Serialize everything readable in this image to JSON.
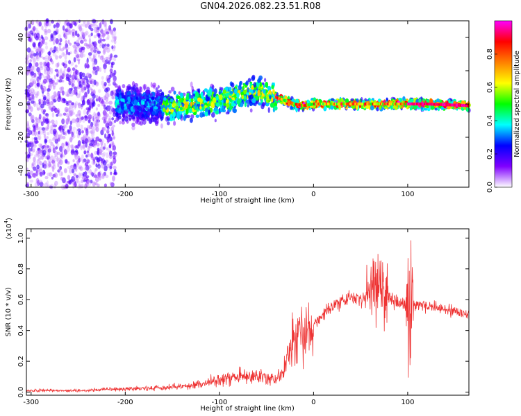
{
  "title": "GN04.2026.082.23.51.R08",
  "chart_data": [
    {
      "type": "heatmap",
      "xlabel": "Height of straight line (km)",
      "ylabel": "Frequency (Hz)",
      "xlim": [
        -305,
        165
      ],
      "ylim": [
        -50,
        50
      ],
      "xticks": [
        -300,
        -200,
        -100,
        0,
        100
      ],
      "yticks": [
        -40,
        -20,
        0,
        20,
        40
      ],
      "colorbar": {
        "label": "Normalized spectral amplitude",
        "range": [
          0.0,
          1.0
        ],
        "ticks": [
          0.0,
          0.2,
          0.4,
          0.6,
          0.8
        ],
        "colors": [
          "#ffffff",
          "#8000ff",
          "#0000ff",
          "#00ffff",
          "#00ff00",
          "#ffff00",
          "#ff8000",
          "#ff0000",
          "#ff00ff"
        ]
      },
      "regions": [
        {
          "x": [
            -305,
            -210
          ],
          "freq_center": 0,
          "freq_spread": 50,
          "amplitude": 0.05
        },
        {
          "x": [
            -210,
            -160
          ],
          "freq_center": 0,
          "freq_spread": 12,
          "amplitude": 0.25
        },
        {
          "x": [
            -160,
            -40
          ],
          "freq_center": 2,
          "freq_spread": 10,
          "amplitude": 0.45
        },
        {
          "x": [
            -40,
            165
          ],
          "freq_center": 0,
          "freq_spread": 3,
          "amplitude": 0.7
        }
      ],
      "ridge": {
        "x": [
          -210,
          -180,
          -150,
          -120,
          -100,
          -80,
          -60,
          -45,
          -30,
          -20,
          -10,
          0,
          30,
          60,
          90,
          120,
          165
        ],
        "freq": [
          0,
          0,
          -2,
          0,
          2,
          5,
          8,
          5,
          2,
          0,
          -1,
          0,
          0,
          0,
          0,
          0,
          -1
        ]
      }
    },
    {
      "type": "line",
      "xlabel": "Height of straight line (km)",
      "ylabel": "SNR (10 * v/v)",
      "yscale_label": "(x10",
      "yscale_exp": "4",
      "xlim": [
        -305,
        165
      ],
      "ylim": [
        -0.02,
        1.06
      ],
      "xticks": [
        -300,
        -200,
        -100,
        0,
        100
      ],
      "yticks": [
        0.0,
        0.2,
        0.4,
        0.6,
        0.8,
        1.0
      ],
      "series": [
        {
          "color": "#ee3333",
          "x": [
            -305,
            -250,
            -200,
            -150,
            -120,
            -100,
            -80,
            -60,
            -40,
            -30,
            -25,
            -20,
            -10,
            0,
            10,
            20,
            30,
            40,
            50,
            60,
            65,
            70,
            75,
            80,
            90,
            100,
            102,
            105,
            120,
            140,
            165
          ],
          "y": [
            0.01,
            0.01,
            0.02,
            0.03,
            0.05,
            0.08,
            0.1,
            0.1,
            0.08,
            0.15,
            0.3,
            0.35,
            0.38,
            0.45,
            0.5,
            0.56,
            0.6,
            0.61,
            0.6,
            0.62,
            0.72,
            0.68,
            0.62,
            0.6,
            0.58,
            0.55,
            0.6,
            0.57,
            0.56,
            0.54,
            0.51
          ]
        }
      ]
    }
  ]
}
